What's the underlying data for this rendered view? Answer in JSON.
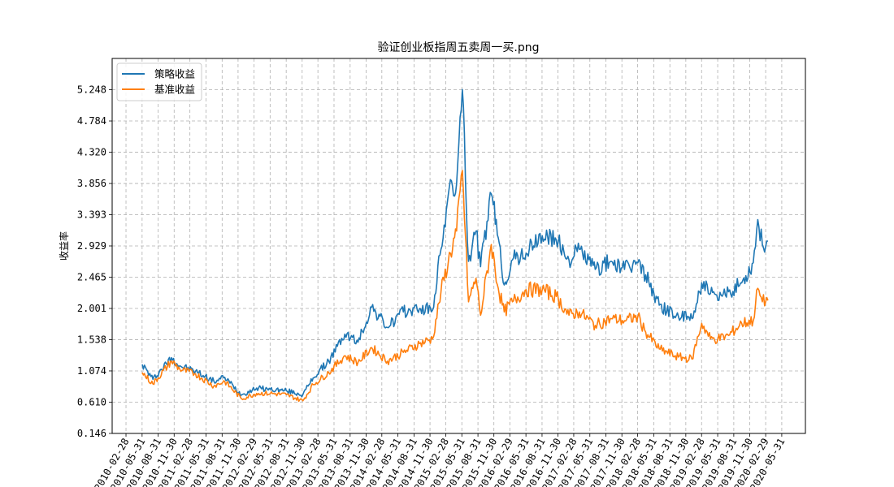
{
  "chart_data": {
    "type": "line",
    "title": "验证创业板指周五卖周一买.png",
    "xlabel": "",
    "ylabel": "收益率",
    "ylim": [
      0.146,
      5.712
    ],
    "yticks": [
      "0.146",
      "0.610",
      "1.074",
      "1.538",
      "2.001",
      "2.465",
      "2.929",
      "3.393",
      "3.856",
      "4.320",
      "4.784",
      "5.248"
    ],
    "xticks": [
      "2010-02-28",
      "2010-05-31",
      "2010-08-31",
      "2010-11-30",
      "2011-02-28",
      "2011-05-31",
      "2011-08-31",
      "2011-11-30",
      "2012-02-29",
      "2012-05-31",
      "2012-08-31",
      "2012-11-30",
      "2013-02-28",
      "2013-05-31",
      "2013-08-31",
      "2013-11-30",
      "2014-02-28",
      "2014-05-31",
      "2014-08-31",
      "2014-11-30",
      "2015-02-28",
      "2015-05-31",
      "2015-08-31",
      "2015-11-30",
      "2016-02-29",
      "2016-05-31",
      "2016-08-31",
      "2016-11-30",
      "2017-02-28",
      "2017-05-31",
      "2017-08-31",
      "2017-11-30",
      "2018-02-28",
      "2018-05-31",
      "2018-08-31",
      "2018-11-30",
      "2019-02-28",
      "2019-05-31",
      "2019-08-31",
      "2019-11-30",
      "2020-02-29",
      "2020-05-31"
    ],
    "grid": true,
    "legend_position": "top-left",
    "x": [
      "2010-06-01",
      "2010-08-01",
      "2010-11-15",
      "2011-01-01",
      "2011-04-01",
      "2011-07-15",
      "2011-09-15",
      "2011-12-20",
      "2012-03-15",
      "2012-06-01",
      "2012-09-01",
      "2012-12-04",
      "2013-02-01",
      "2013-05-01",
      "2013-08-01",
      "2013-10-15",
      "2014-01-01",
      "2014-04-01",
      "2014-07-01",
      "2014-10-01",
      "2014-12-15",
      "2015-02-01",
      "2015-03-15",
      "2015-05-01",
      "2015-06-03",
      "2015-07-08",
      "2015-08-20",
      "2015-09-15",
      "2015-11-15",
      "2015-12-25",
      "2016-01-28",
      "2016-03-15",
      "2016-06-01",
      "2016-09-01",
      "2016-11-20",
      "2017-02-01",
      "2017-04-01",
      "2017-07-01",
      "2017-10-01",
      "2017-12-15",
      "2018-03-01",
      "2018-04-15",
      "2018-07-01",
      "2018-10-19",
      "2019-01-04",
      "2019-03-01",
      "2019-04-20",
      "2019-06-01",
      "2019-08-01",
      "2019-10-15",
      "2019-12-20",
      "2020-01-15",
      "2020-02-10",
      "2020-03-13"
    ],
    "series": [
      {
        "name": "策略收益",
        "color": "#1f77b4",
        "values": [
          1.17,
          0.95,
          1.27,
          1.15,
          1.07,
          0.92,
          0.98,
          0.72,
          0.82,
          0.8,
          0.78,
          0.72,
          0.97,
          1.22,
          1.62,
          1.5,
          2.02,
          1.72,
          1.95,
          2.0,
          1.98,
          2.88,
          3.7,
          3.85,
          5.25,
          2.7,
          3.15,
          2.62,
          3.7,
          3.05,
          2.35,
          2.72,
          2.82,
          3.08,
          3.02,
          2.72,
          2.88,
          2.58,
          2.7,
          2.58,
          2.68,
          2.5,
          2.05,
          1.88,
          1.85,
          2.38,
          2.22,
          2.12,
          2.25,
          2.38,
          2.68,
          3.32,
          2.95,
          3.0
        ]
      },
      {
        "name": "基准收益",
        "color": "#ff7f0e",
        "values": [
          1.05,
          0.88,
          1.22,
          1.1,
          1.03,
          0.85,
          0.92,
          0.66,
          0.74,
          0.74,
          0.72,
          0.63,
          0.87,
          1.05,
          1.3,
          1.2,
          1.42,
          1.22,
          1.35,
          1.48,
          1.55,
          2.25,
          2.7,
          3.15,
          4.05,
          2.1,
          2.45,
          1.9,
          2.95,
          2.3,
          1.95,
          2.1,
          2.28,
          2.28,
          2.18,
          1.9,
          1.95,
          1.75,
          1.85,
          1.82,
          1.88,
          1.65,
          1.4,
          1.28,
          1.25,
          1.78,
          1.55,
          1.55,
          1.6,
          1.78,
          1.82,
          2.3,
          2.1,
          2.12
        ]
      }
    ]
  }
}
